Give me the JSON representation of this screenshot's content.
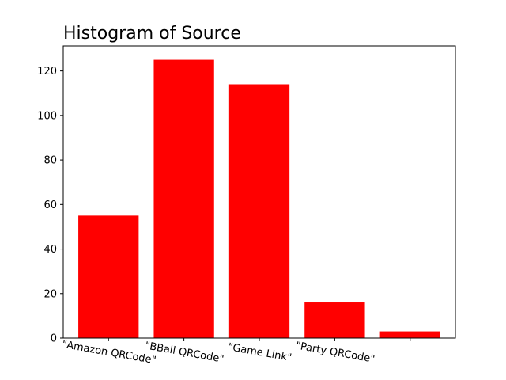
{
  "chart_data": {
    "type": "bar",
    "title": "Histogram of Source",
    "xlabel": "",
    "ylabel": "",
    "categories": [
      "\"Amazon QRCode\"",
      "\"BBall QRCode\"",
      "\"Game Link\"",
      "\"Party QRCode\"",
      ""
    ],
    "values": [
      55,
      125,
      114,
      16,
      3
    ],
    "ylim": [
      0,
      131.25
    ],
    "yticks": [
      0,
      20,
      40,
      60,
      80,
      100,
      120
    ],
    "bar_color": "#ff0000",
    "grid": false,
    "legend": "none"
  }
}
